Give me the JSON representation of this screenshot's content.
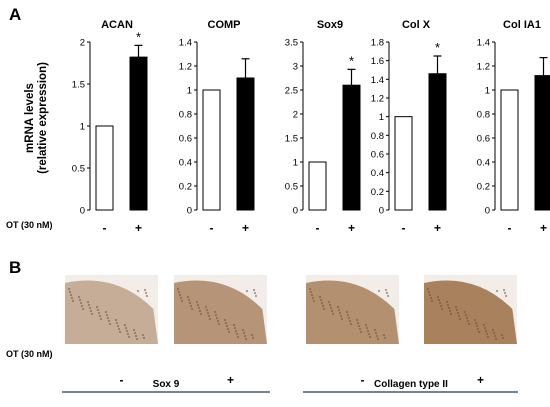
{
  "panel_a_label": "A",
  "panel_b_label": "B",
  "y_label_line1": "mRNA levels",
  "y_label_line2": "(relative expression)",
  "treatment_label": "OT (30 nM)",
  "condition_labels": [
    "-",
    "+"
  ],
  "colors": {
    "control": "#ffffff",
    "treated": "#000000",
    "stroke": "#000000"
  },
  "chart_data": [
    {
      "type": "bar",
      "title": "ACAN",
      "categories": [
        "-",
        "+"
      ],
      "values": [
        1.0,
        1.82
      ],
      "errors": [
        0,
        0.14
      ],
      "significance": [
        "",
        "*"
      ],
      "ylim": [
        0,
        2
      ],
      "yticks": [
        "0",
        "0.5",
        "1",
        "1.5",
        "2"
      ],
      "xlabel": "",
      "ylabel": "mRNA levels (relative expression)"
    },
    {
      "type": "bar",
      "title": "COMP",
      "categories": [
        "-",
        "+"
      ],
      "values": [
        1.0,
        1.1
      ],
      "errors": [
        0,
        0.16
      ],
      "significance": [
        "",
        ""
      ],
      "ylim": [
        0,
        1.4
      ],
      "yticks": [
        "0",
        "0.2",
        "0.4",
        "0.6",
        "0.8",
        "1",
        "1.2",
        "1.4"
      ],
      "xlabel": "",
      "ylabel": ""
    },
    {
      "type": "bar",
      "title": "Sox9",
      "categories": [
        "-",
        "+"
      ],
      "values": [
        1.0,
        2.6
      ],
      "errors": [
        0,
        0.33
      ],
      "significance": [
        "",
        "*"
      ],
      "ylim": [
        0,
        3.5
      ],
      "yticks": [
        "0",
        "0.5",
        "1",
        "1.5",
        "2",
        "2.5",
        "3",
        "3.5"
      ],
      "xlabel": "",
      "ylabel": ""
    },
    {
      "type": "bar",
      "title": "Col X",
      "categories": [
        "-",
        "+"
      ],
      "values": [
        1.0,
        1.46
      ],
      "errors": [
        0,
        0.19
      ],
      "significance": [
        "",
        "*"
      ],
      "ylim": [
        0,
        1.8
      ],
      "yticks": [
        "0",
        "0.2",
        "0.4",
        "0.6",
        "0.8",
        "1",
        "1.2",
        "1.4",
        "1.6",
        "1.8"
      ],
      "xlabel": "",
      "ylabel": ""
    },
    {
      "type": "bar",
      "title": "Col IA1",
      "categories": [
        "-",
        "+"
      ],
      "values": [
        1.0,
        1.12
      ],
      "errors": [
        0,
        0.15
      ],
      "significance": [
        "",
        ""
      ],
      "ylim": [
        0,
        1.4
      ],
      "yticks": [
        "0",
        "0.2",
        "0.4",
        "0.6",
        "0.8",
        "1",
        "1.2",
        "1.4"
      ],
      "xlabel": "",
      "ylabel": ""
    }
  ],
  "panel_b": {
    "image_labels": [
      "-",
      "+",
      "-",
      "+"
    ],
    "groups": [
      "Sox 9",
      "Collagen type II"
    ],
    "image_colors": [
      "#c5ad98",
      "#b59477",
      "#b3906f",
      "#a9825d"
    ]
  }
}
